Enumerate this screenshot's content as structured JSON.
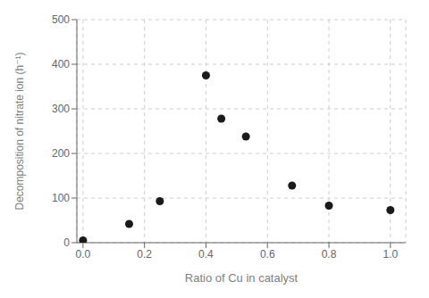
{
  "chart_data": {
    "type": "scatter",
    "x": [
      0.0,
      0.15,
      0.25,
      0.4,
      0.45,
      0.53,
      0.68,
      0.8,
      1.0
    ],
    "values": [
      5,
      42,
      93,
      375,
      278,
      238,
      128,
      83,
      73
    ],
    "xlim": [
      -0.02,
      1.05
    ],
    "ylim": [
      0,
      500
    ],
    "xticks": [
      {
        "value": 0,
        "label": "0.0"
      },
      0.2,
      0.4,
      0.6,
      0.8,
      {
        "value": 1.0,
        "label": "1.0"
      }
    ],
    "yticks": [
      0,
      100,
      200,
      300,
      400,
      500
    ],
    "xlabel": "Ratio of Cu in catalyst",
    "ylabel": "Decomposition of nitrate ion (h⁻¹)",
    "color": "#1a1a1a",
    "grid": true
  }
}
